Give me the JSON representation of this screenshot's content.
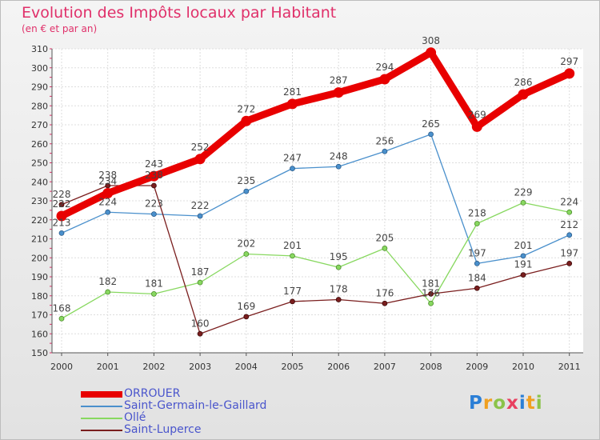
{
  "chart_data": {
    "type": "line",
    "title": "Evolution des Impôts locaux par Habitant",
    "subtitle": "(en € et par an)",
    "categories": [
      "2000",
      "2001",
      "2002",
      "2003",
      "2004",
      "2005",
      "2006",
      "2007",
      "2008",
      "2009",
      "2010",
      "2011"
    ],
    "ylim": [
      150,
      310
    ],
    "yticks": [
      150,
      160,
      170,
      180,
      190,
      200,
      210,
      220,
      230,
      240,
      250,
      260,
      270,
      280,
      290,
      300,
      310
    ],
    "grid": true,
    "legend_position": "bottom-left",
    "series": [
      {
        "name": "ORROUER",
        "color": "#e80000",
        "values": [
          222,
          234,
          243,
          252,
          272,
          281,
          287,
          294,
          308,
          269,
          286,
          297
        ],
        "labels": [
          "222",
          "234",
          "243",
          "252",
          "272",
          "281",
          "287",
          "294",
          "308",
          "269",
          "286",
          "297"
        ]
      },
      {
        "name": "Saint-Germain-le-Gaillard",
        "color": "#4a90cc",
        "values": [
          213,
          224,
          223,
          222,
          235,
          247,
          248,
          256,
          265,
          197,
          201,
          212
        ],
        "labels": [
          "213",
          "224",
          "223",
          "222",
          "235",
          "247",
          "248",
          "256",
          "265",
          "197",
          "201",
          "212"
        ]
      },
      {
        "name": "Ollé",
        "color": "#88d860",
        "values": [
          168,
          182,
          181,
          187,
          202,
          201,
          195,
          205,
          176,
          218,
          229,
          224
        ],
        "labels": [
          "168",
          "182",
          "181",
          "187",
          "202",
          "201",
          "195",
          "205",
          "176",
          "218",
          "229",
          "224"
        ]
      },
      {
        "name": "Saint-Luperce",
        "color": "#7a1e1e",
        "values": [
          228,
          238,
          238,
          160,
          169,
          177,
          178,
          176,
          181,
          184,
          191,
          197
        ],
        "labels": [
          "228",
          "238",
          "238",
          "160",
          "169",
          "177",
          "178",
          "176",
          "181",
          "184",
          "191",
          "197"
        ]
      }
    ]
  },
  "brand": {
    "letters": [
      "P",
      "r",
      "o",
      "x",
      "i",
      "t",
      "i"
    ],
    "colors": [
      "#2b7fd6",
      "#f0a020",
      "#8bc34a",
      "#e84060",
      "#2b7fd6",
      "#f0a020",
      "#8bc34a"
    ]
  }
}
